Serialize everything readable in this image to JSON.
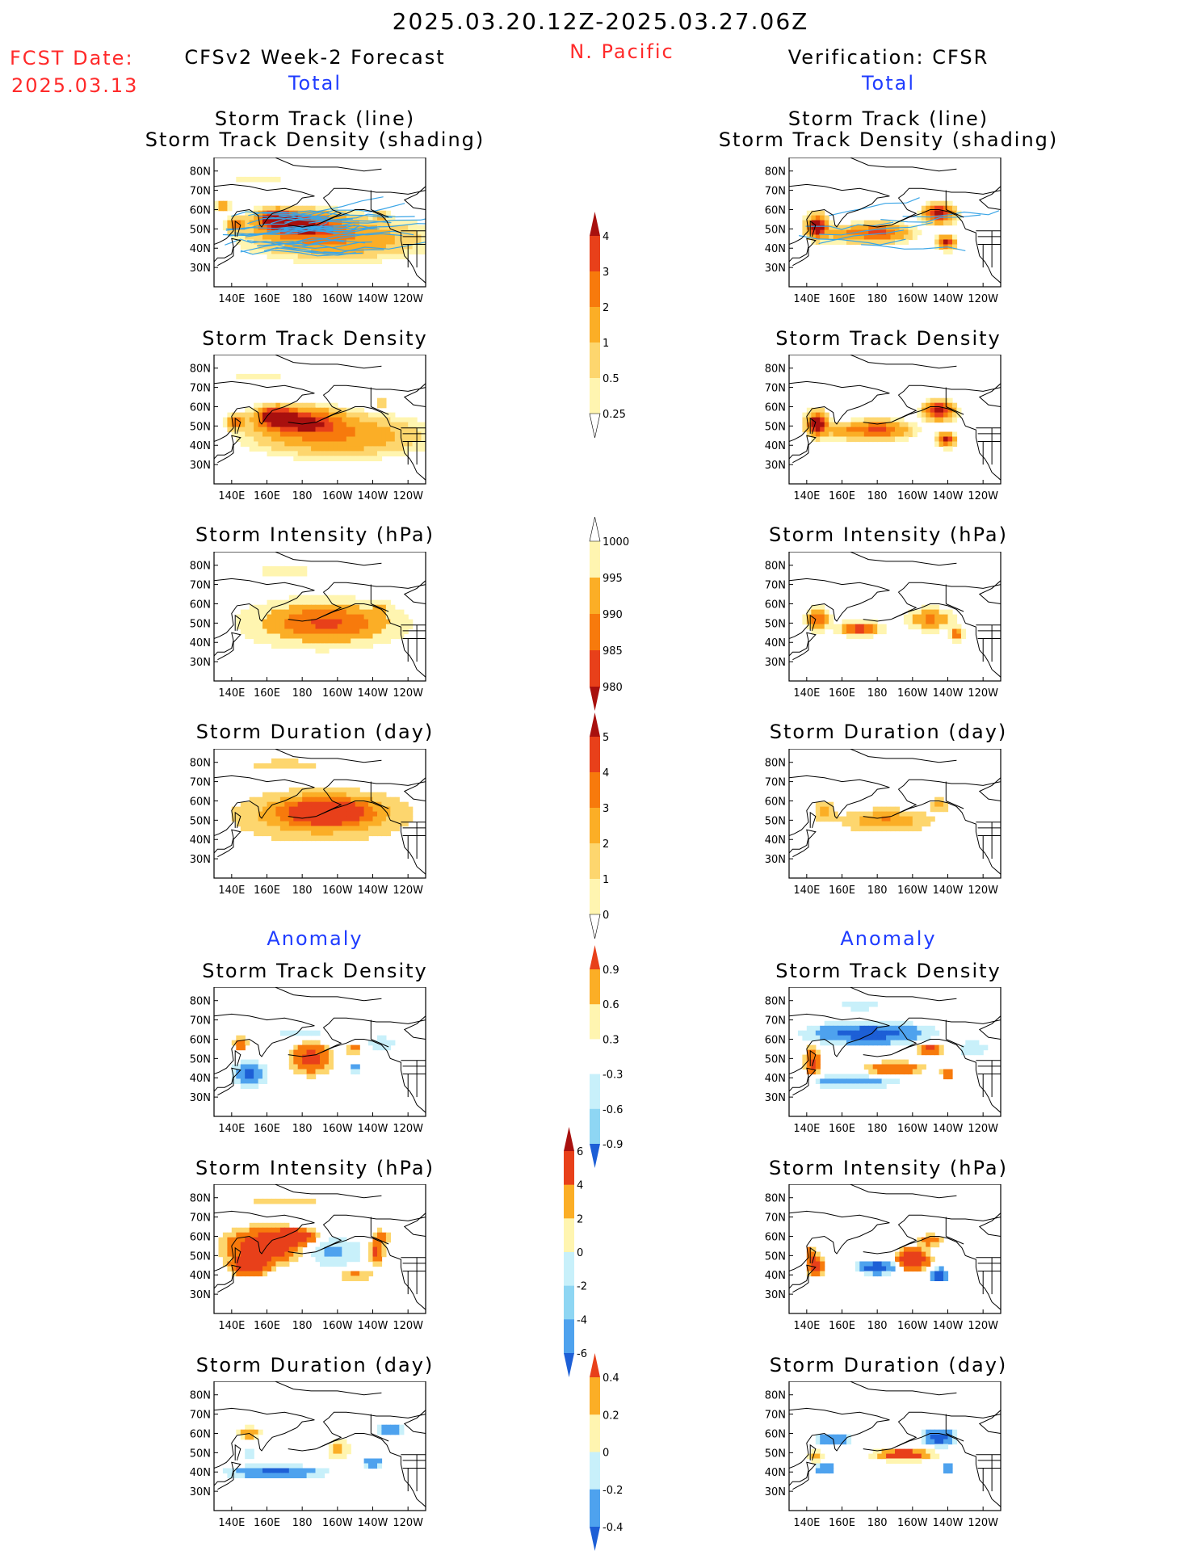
{
  "header": {
    "date_range": "2025.03.20.12Z-2025.03.27.06Z",
    "fcst_label": "FCST Date:",
    "fcst_date": "2025.03.13",
    "region": "N. Pacific",
    "left_title": "CFSv2 Week-2 Forecast",
    "right_title": "Verification: CFSR",
    "total_label": "Total",
    "anomaly_label": "Anomaly"
  },
  "panel_titles": {
    "track_line": "Storm Track (line)",
    "track_density_shading": "Storm Track Density (shading)",
    "track_density": "Storm Track Density",
    "intensity": "Storm Intensity (hPa)",
    "duration": "Storm Duration (day)"
  },
  "axes": {
    "lat_ticks": [
      "80N",
      "70N",
      "60N",
      "50N",
      "40N",
      "30N"
    ],
    "lon_ticks": [
      "140E",
      "160E",
      "180",
      "160W",
      "140W",
      "120W"
    ]
  },
  "colors": {
    "pos": [
      "#fff5b0",
      "#fdd66e",
      "#fbae26",
      "#f77a0c",
      "#e8401a",
      "#a8100e"
    ],
    "neg": [
      "#c8f0fa",
      "#8ed6f3",
      "#4ea2ee",
      "#1d5fd6"
    ],
    "track_line": "#3aa5e6"
  },
  "chart_data": [
    {
      "type": "heatmap",
      "name": "forecast_total_track",
      "scale": "density",
      "features": [
        [
          200,
          45,
          40,
          9,
          2
        ],
        [
          180,
          52,
          20,
          6,
          4
        ],
        [
          165,
          55,
          9,
          4,
          5.5
        ],
        [
          142,
          52,
          4,
          3,
          3.2
        ],
        [
          155,
          75,
          20,
          2,
          0.4
        ],
        [
          135,
          62,
          3,
          2,
          2
        ],
        [
          225,
          57,
          3,
          2,
          1.2
        ]
      ],
      "tracks": true
    },
    {
      "type": "heatmap",
      "name": "verification_total_track",
      "scale": "density",
      "features": [
        [
          146,
          51,
          5,
          5,
          6
        ],
        [
          180,
          48,
          15,
          4,
          3.5
        ],
        [
          215,
          58,
          7,
          4,
          5
        ],
        [
          219,
          43,
          4,
          3,
          4.5
        ],
        [
          160,
          47,
          8,
          3,
          1.5
        ]
      ],
      "tracks": true
    },
    {
      "type": "heatmap",
      "name": "forecast_total_density",
      "scale": "density",
      "features": [
        [
          200,
          45,
          40,
          9,
          2
        ],
        [
          180,
          52,
          20,
          6,
          4
        ],
        [
          165,
          55,
          9,
          4,
          5.5
        ],
        [
          142,
          52,
          4,
          3,
          3.2
        ],
        [
          155,
          75,
          20,
          2,
          0.4
        ],
        [
          225,
          62,
          3,
          2,
          1.0
        ]
      ]
    },
    {
      "type": "heatmap",
      "name": "verification_total_density",
      "scale": "density",
      "features": [
        [
          146,
          51,
          5,
          5,
          6
        ],
        [
          180,
          48,
          15,
          4,
          3.5
        ],
        [
          215,
          58,
          7,
          4,
          5
        ],
        [
          219,
          43,
          4,
          3,
          4.5
        ],
        [
          160,
          47,
          8,
          3,
          1.5
        ]
      ]
    },
    {
      "type": "heatmap",
      "name": "forecast_total_intensity",
      "scale": "intensity",
      "features": [
        [
          190,
          50,
          40,
          12,
          1.5
        ],
        [
          195,
          50,
          30,
          8,
          2.2
        ],
        [
          170,
          77,
          18,
          2,
          1
        ],
        [
          225,
          58,
          4,
          3,
          1
        ]
      ]
    },
    {
      "type": "heatmap",
      "name": "verification_total_intensity",
      "scale": "intensity",
      "features": [
        [
          146,
          52,
          6,
          5,
          3.2
        ],
        [
          170,
          47,
          10,
          3,
          4.6
        ],
        [
          210,
          52,
          12,
          5,
          2.5
        ],
        [
          225,
          44,
          3,
          3,
          3.5
        ]
      ]
    },
    {
      "type": "heatmap",
      "name": "forecast_total_duration",
      "scale": "duration",
      "features": [
        [
          190,
          52,
          42,
          11,
          2.5
        ],
        [
          195,
          55,
          25,
          7,
          3.6
        ],
        [
          170,
          79,
          22,
          2,
          1.4
        ]
      ]
    },
    {
      "type": "heatmap",
      "name": "verification_total_duration",
      "scale": "duration",
      "features": [
        [
          185,
          50,
          22,
          5,
          2.6
        ],
        [
          150,
          55,
          5,
          5,
          2.2
        ],
        [
          215,
          58,
          5,
          3,
          2.2
        ]
      ]
    },
    {
      "type": "heatmap",
      "name": "forecast_anomaly_density",
      "scale": "anom_density",
      "features": [
        [
          150,
          42,
          8,
          6,
          -3
        ],
        [
          185,
          50,
          10,
          7,
          3.5
        ],
        [
          145,
          58,
          4,
          3,
          2.5
        ],
        [
          210,
          45,
          4,
          3,
          -1.5
        ],
        [
          210,
          55,
          5,
          3,
          1.5
        ],
        [
          225,
          58,
          10,
          4,
          -1
        ],
        [
          180,
          63,
          25,
          3,
          -0.8
        ]
      ]
    },
    {
      "type": "heatmap",
      "name": "verification_anomaly_density",
      "scale": "anom_density",
      "features": [
        [
          175,
          63,
          30,
          5,
          -3.5
        ],
        [
          170,
          78,
          12,
          3,
          -1.2
        ],
        [
          143,
          48,
          4,
          7,
          3
        ],
        [
          190,
          45,
          15,
          3,
          2.5
        ],
        [
          210,
          55,
          6,
          3,
          3
        ],
        [
          220,
          42,
          3,
          3,
          3
        ],
        [
          165,
          38,
          25,
          3,
          -2
        ],
        [
          235,
          55,
          10,
          5,
          -1
        ]
      ]
    },
    {
      "type": "heatmap",
      "name": "forecast_anomaly_intensity",
      "scale": "anom_intensity",
      "features": [
        [
          160,
          55,
          20,
          8,
          4.5
        ],
        [
          175,
          60,
          10,
          3,
          6
        ],
        [
          150,
          45,
          8,
          4,
          6.5
        ],
        [
          195,
          52,
          20,
          8,
          -1.5
        ],
        [
          170,
          78,
          20,
          2,
          1.2
        ],
        [
          225,
          60,
          4,
          3,
          2
        ],
        [
          210,
          40,
          10,
          3,
          1.5
        ],
        [
          222,
          52,
          4,
          6,
          3
        ]
      ]
    },
    {
      "type": "heatmap",
      "name": "verification_anomaly_intensity",
      "scale": "anom_intensity",
      "features": [
        [
          200,
          48,
          8,
          5,
          5
        ],
        [
          145,
          45,
          4,
          4,
          5
        ],
        [
          180,
          44,
          10,
          3,
          -4
        ],
        [
          215,
          40,
          4,
          3,
          -4.5
        ],
        [
          210,
          58,
          6,
          3,
          2
        ],
        [
          142,
          52,
          3,
          3,
          1.5
        ]
      ]
    },
    {
      "type": "heatmap",
      "name": "forecast_anomaly_duration",
      "scale": "anom_duration",
      "features": [
        [
          165,
          40,
          25,
          3,
          -0.35
        ],
        [
          150,
          60,
          6,
          3,
          0.3
        ],
        [
          185,
          55,
          15,
          7,
          -0.05
        ],
        [
          200,
          52,
          8,
          5,
          0.2
        ],
        [
          230,
          62,
          6,
          3,
          -0.3
        ],
        [
          220,
          45,
          6,
          3,
          -0.25
        ],
        [
          150,
          50,
          5,
          5,
          -0.12
        ],
        [
          170,
          78,
          20,
          2,
          0.08
        ]
      ]
    },
    {
      "type": "heatmap",
      "name": "verification_anomaly_duration",
      "scale": "anom_duration",
      "features": [
        [
          215,
          58,
          8,
          4,
          -0.45
        ],
        [
          155,
          57,
          8,
          3,
          -0.35
        ],
        [
          150,
          42,
          5,
          3,
          -0.35
        ],
        [
          195,
          49,
          15,
          3,
          0.45
        ],
        [
          220,
          42,
          3,
          3,
          -0.4
        ],
        [
          145,
          48,
          4,
          3,
          0.25
        ]
      ]
    }
  ],
  "colorbars": {
    "density": [
      "4",
      "3",
      "2",
      "1",
      "0.5",
      "0.25"
    ],
    "intensity": [
      "1000",
      "995",
      "990",
      "985",
      "980"
    ],
    "duration": [
      "5",
      "4",
      "3",
      "2",
      "1",
      "0"
    ],
    "anom_density": [
      "0.9",
      "0.6",
      "0.3",
      "-0.3",
      "-0.6",
      "-0.9"
    ],
    "anom_intensity": [
      "6",
      "4",
      "2",
      "0",
      "-2",
      "-4",
      "-6"
    ],
    "anom_duration": [
      "0.4",
      "0.2",
      "0",
      "-0.2",
      "-0.4"
    ]
  }
}
